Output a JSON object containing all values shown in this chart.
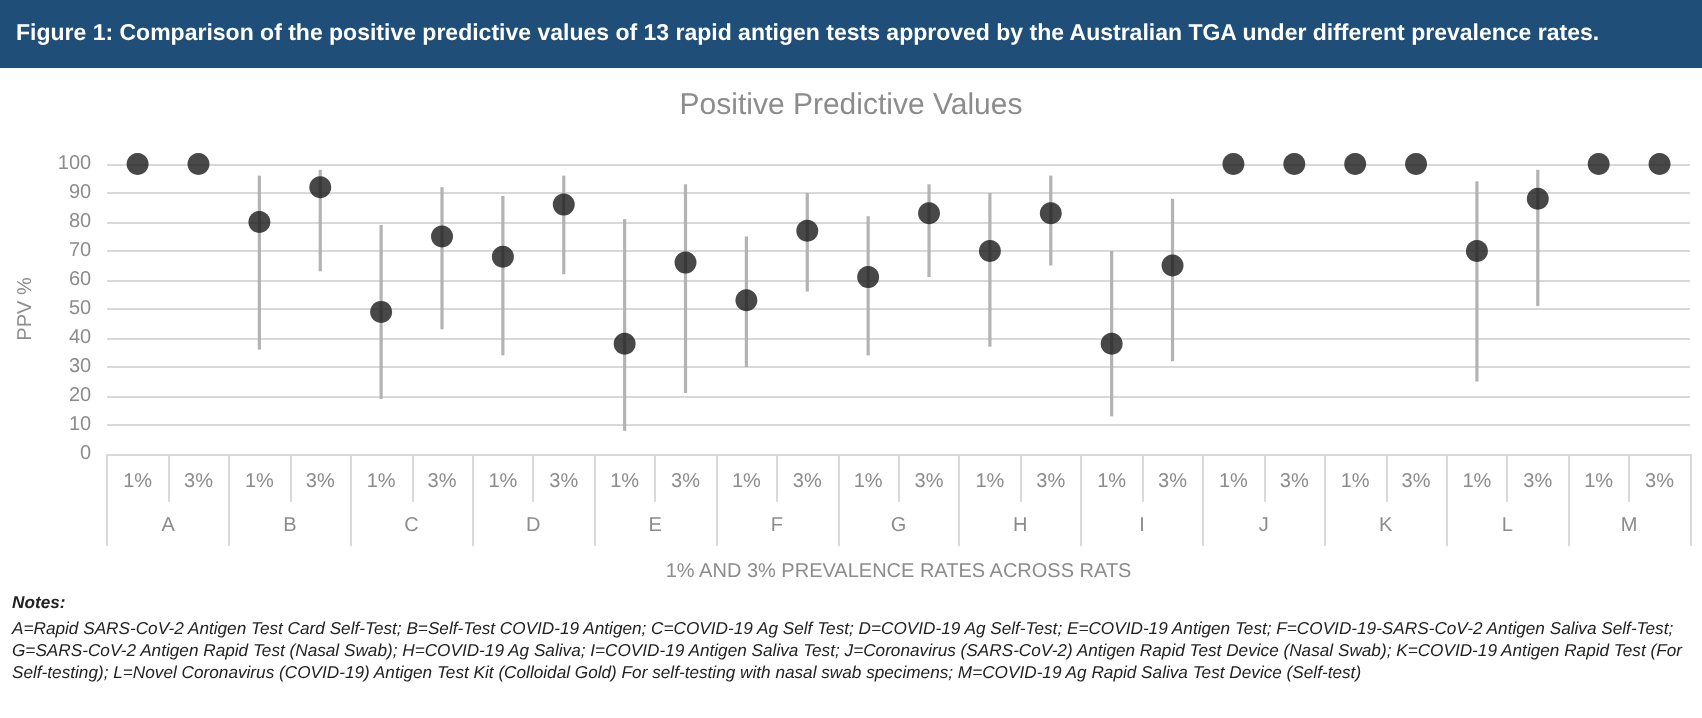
{
  "chart_data": {
    "type": "scatter",
    "title": "Figure 1: Comparison of the positive predictive values of 13 rapid antigen tests approved by the Australian TGA under different prevalence rates.",
    "subtitle": "Positive Predictive Values",
    "xlabel": "1% AND 3% PREVALENCE RATES ACROSS RATS",
    "ylabel": "PPV %",
    "categories": [
      "A",
      "B",
      "C",
      "D",
      "E",
      "F",
      "G",
      "H",
      "I",
      "J",
      "K",
      "L",
      "M"
    ],
    "series": [
      {
        "name": "1%",
        "color": "#1a1a1a",
        "values": [
          100,
          80,
          49,
          68,
          38,
          53,
          61,
          70,
          38,
          100,
          100,
          70,
          100
        ],
        "errors": [
          null,
          [
            36,
            96
          ],
          [
            19,
            79
          ],
          [
            34,
            89
          ],
          [
            8,
            81
          ],
          [
            30,
            75
          ],
          [
            34,
            82
          ],
          [
            37,
            90
          ],
          [
            13,
            70
          ],
          null,
          null,
          [
            25,
            94
          ],
          null
        ]
      },
      {
        "name": "3%",
        "color": "#1a1a1a",
        "values": [
          100,
          92,
          75,
          86,
          66,
          77,
          83,
          83,
          65,
          100,
          100,
          88,
          100
        ],
        "errors": [
          null,
          [
            63,
            98
          ],
          [
            43,
            92
          ],
          [
            62,
            96
          ],
          [
            21,
            93
          ],
          [
            56,
            90
          ],
          [
            61,
            93
          ],
          [
            65,
            96
          ],
          [
            32,
            88
          ],
          null,
          null,
          [
            51,
            98
          ],
          null
        ]
      }
    ],
    "ylim": [
      0,
      100
    ],
    "yticks": [
      0,
      10,
      20,
      30,
      40,
      50,
      60,
      70,
      80,
      90,
      100
    ],
    "grid": "y",
    "marker": "circle",
    "annotations": [
      "Notes:",
      "A=Rapid SARS-CoV-2 Antigen Test Card Self-Test; B=Self-Test COVID-19 Antigen; C=COVID-19 Ag Self Test; D=COVID-19 Ag Self-Test; E=COVID-19 Antigen Test; F=COVID-19-SARS-CoV-2 Antigen Saliva Self-Test; G=SARS-CoV-2 Antigen Rapid Test (Nasal Swab); H=COVID-19 Ag Saliva; I=COVID-19 Antigen Saliva Test; J=Coronavirus (SARS-CoV-2) Antigen Rapid Test Device (Nasal Swab); K=COVID-19 Antigen Rapid Test (For Self-testing); L=Novel Coronavirus (COVID-19) Antigen Test Kit (Colloidal Gold) For self-testing with nasal swab specimens; M=COVID-19 Ag Rapid Saliva Test Device (Self-test)"
    ]
  }
}
